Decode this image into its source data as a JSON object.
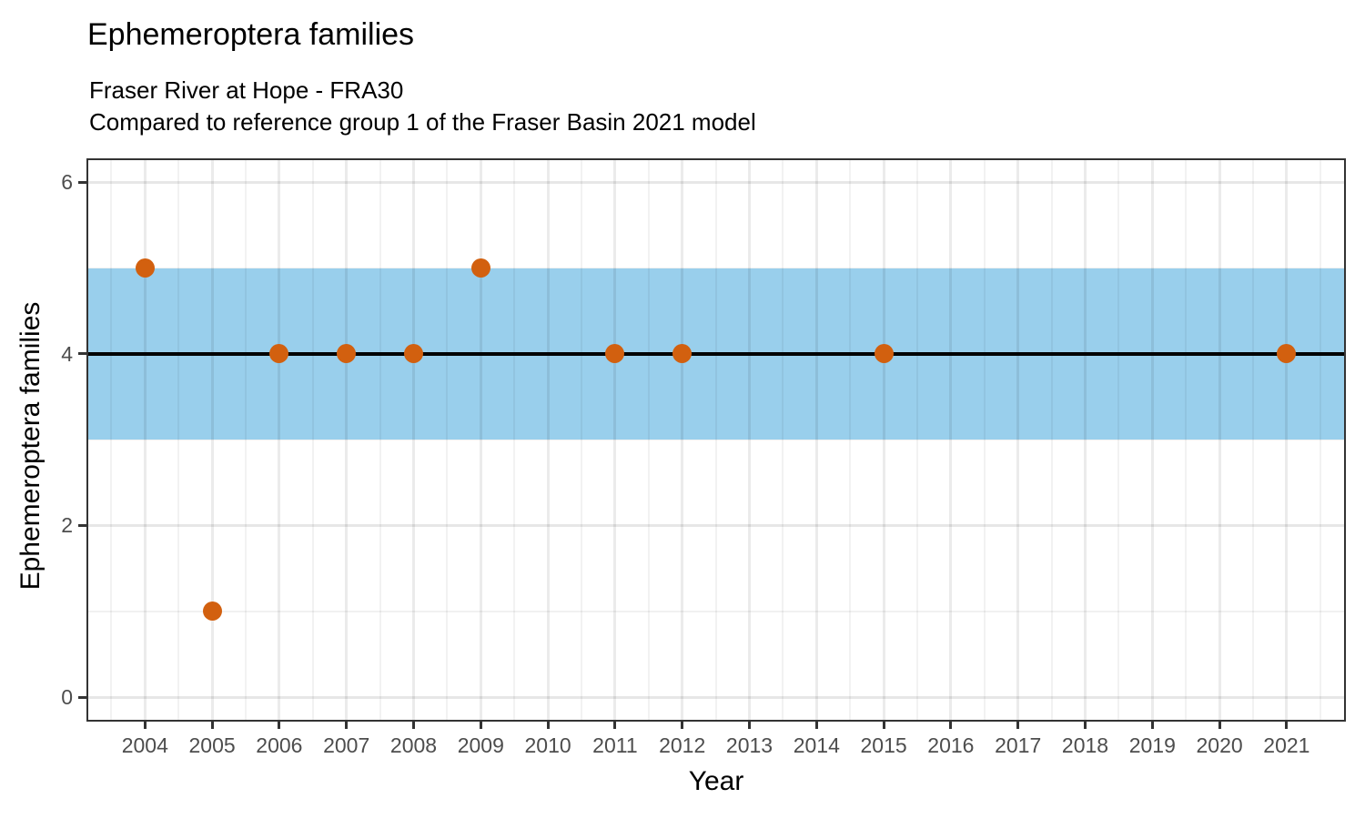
{
  "chart_data": {
    "type": "scatter",
    "title": "Ephemeroptera families",
    "subtitle_line1": "Fraser River at Hope - FRA30",
    "subtitle_line2": "Compared to reference group 1 of the Fraser Basin 2021 model",
    "xlabel": "Year",
    "ylabel": "Ephemeroptera families",
    "x_ticks": [
      2004,
      2005,
      2006,
      2007,
      2008,
      2009,
      2010,
      2011,
      2012,
      2013,
      2014,
      2015,
      2016,
      2017,
      2018,
      2019,
      2020,
      2021
    ],
    "y_ticks": [
      0,
      2,
      4,
      6
    ],
    "y_minor_ticks": [
      1,
      3,
      5
    ],
    "xlim": [
      2003.15,
      2021.7
    ],
    "ylim": [
      -0.27,
      6.26
    ],
    "grid": true,
    "legend": false,
    "points": [
      {
        "x": 2004,
        "y": 5
      },
      {
        "x": 2005,
        "y": 1
      },
      {
        "x": 2006,
        "y": 4
      },
      {
        "x": 2007,
        "y": 4
      },
      {
        "x": 2008,
        "y": 4
      },
      {
        "x": 2009,
        "y": 5
      },
      {
        "x": 2011,
        "y": 4
      },
      {
        "x": 2012,
        "y": 4
      },
      {
        "x": 2015,
        "y": 4
      },
      {
        "x": 2021,
        "y": 4
      }
    ],
    "reference_line_y": 4,
    "reference_band": {
      "ymin": 3,
      "ymax": 5
    },
    "colors": {
      "point": "#d2600f",
      "band": "#99cfec",
      "reference_line": "#000000",
      "axis_text": "#4d4d4d",
      "axis_line": "#333333"
    }
  }
}
